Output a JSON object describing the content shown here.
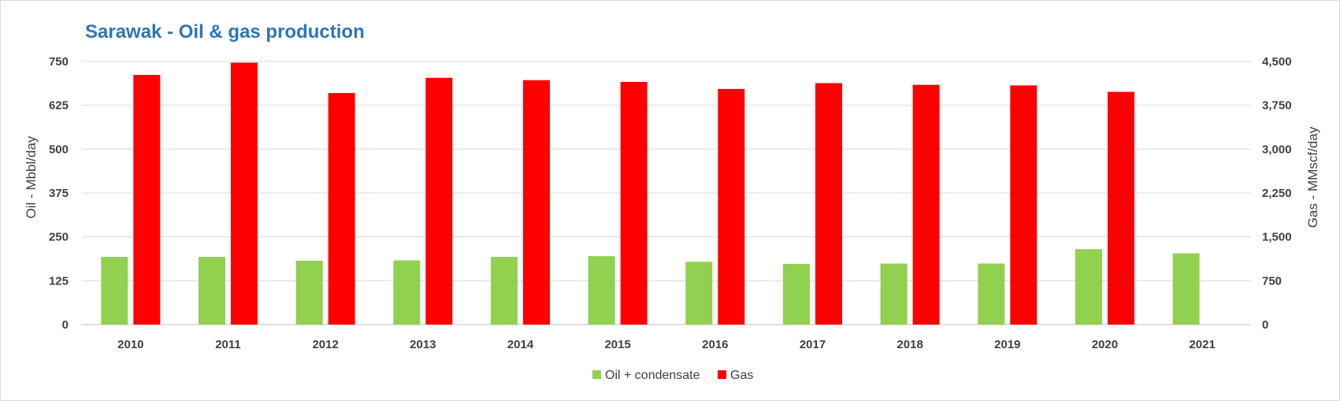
{
  "title": "Sarawak - Oil & gas production",
  "chart_data": {
    "type": "bar",
    "categories": [
      "2010",
      "2011",
      "2012",
      "2013",
      "2014",
      "2015",
      "2016",
      "2017",
      "2018",
      "2019",
      "2020",
      "2021"
    ],
    "series": [
      {
        "name": "Oil + condensate",
        "axis": "left",
        "color": "#92d050",
        "values": [
          193,
          193,
          182,
          183,
          193,
          195,
          179,
          173,
          174,
          174,
          215,
          203
        ]
      },
      {
        "name": "Gas",
        "axis": "right",
        "color": "#ff0000",
        "values": [
          4270,
          4480,
          3960,
          4220,
          4180,
          4150,
          4030,
          4130,
          4100,
          4090,
          3980,
          null
        ]
      }
    ],
    "ylabel_left": "Oil - Mbbl/day",
    "ylabel_right": "Gas - MMscf/day",
    "ylim_left": [
      0,
      750
    ],
    "ylim_right": [
      0,
      4500
    ],
    "yticks_left": [
      "0",
      "125",
      "250",
      "375",
      "500",
      "625",
      "750"
    ],
    "yticks_right": [
      "0",
      "750",
      "1,500",
      "2,250",
      "3,000",
      "3,750",
      "4,500"
    ],
    "grid": true,
    "legend_position": "bottom"
  }
}
